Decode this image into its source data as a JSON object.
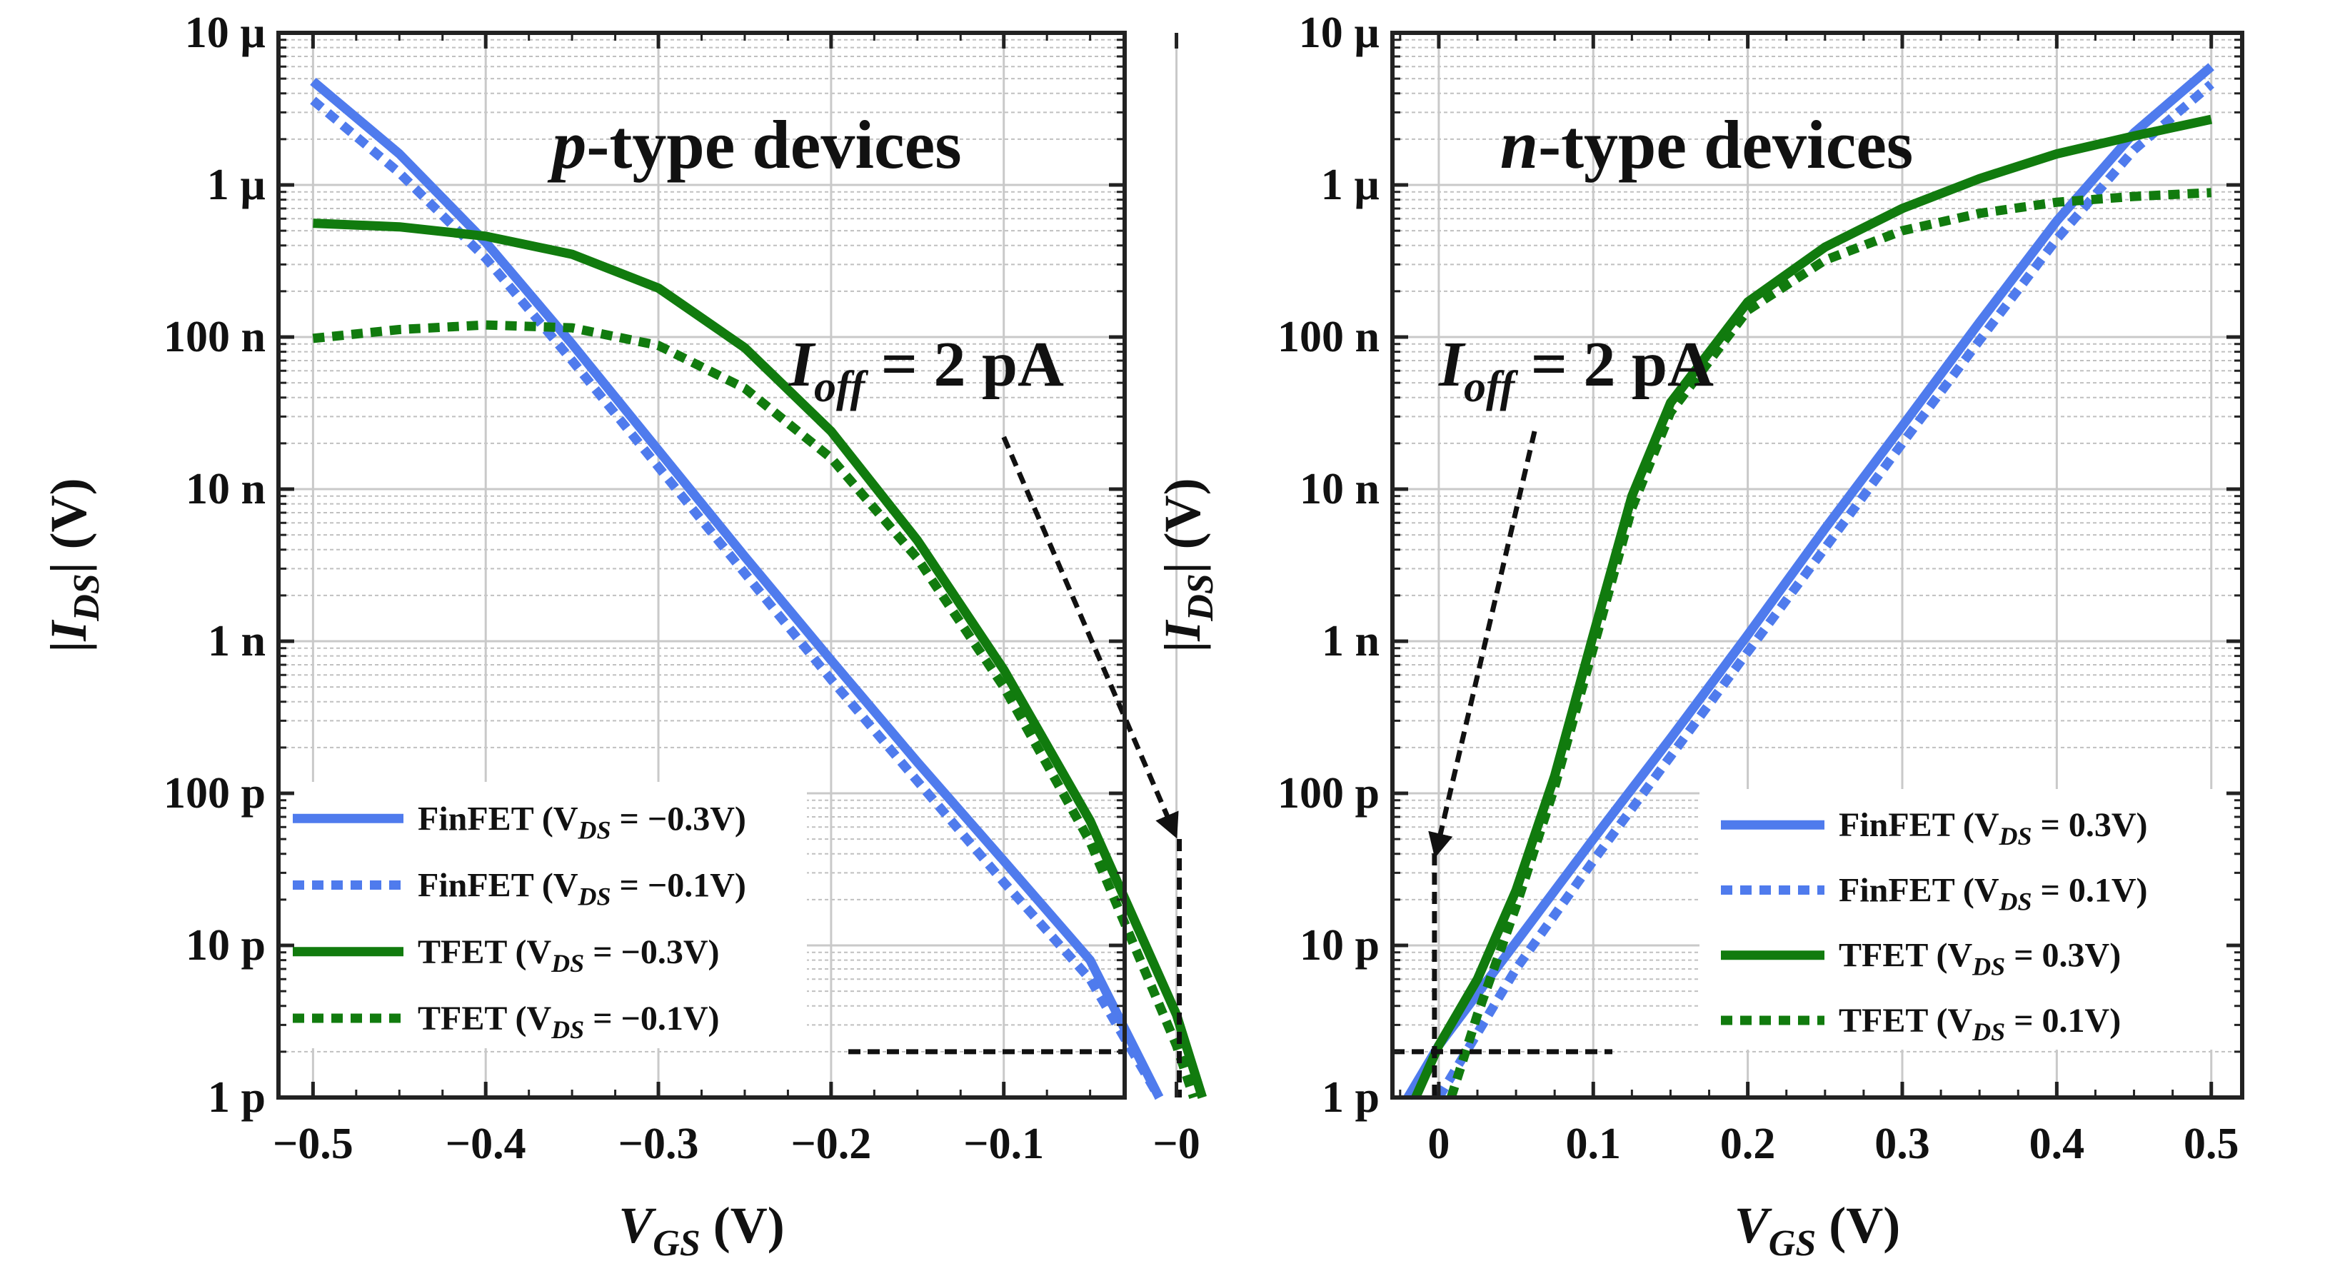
{
  "colors": {
    "finfet": "#4f7bed",
    "tfet": "#117b0e",
    "arrow": "#111111",
    "grid_major": "#c9c9c9",
    "grid_minor": "#c0c0c0",
    "frame": "#222222"
  },
  "chart_data": [
    {
      "type": "line",
      "id": "ptype",
      "title_italic": "p",
      "title_rest": "-type devices",
      "xlabel_main": "V",
      "xlabel_sub": "GS",
      "xlabel_unit": " (V)",
      "ylabel_pre": "|",
      "ylabel_main": "I",
      "ylabel_sub": "DS",
      "ylabel_post": "| (V)",
      "xlim": [
        -0.52,
        -0.03
      ],
      "ylim": [
        1e-12,
        1e-05
      ],
      "yscale": "log",
      "x_ticks": [
        -0.5,
        -0.4,
        -0.3,
        -0.2,
        -0.1,
        0
      ],
      "x_tick_labels": [
        "−0.5",
        "−0.4",
        "−0.3",
        "−0.2",
        "−0.1",
        "−0"
      ],
      "y_ticks": [
        1e-05,
        1e-06,
        1e-07,
        1e-08,
        1e-09,
        1e-10,
        1e-11,
        1e-12
      ],
      "y_tick_labels": [
        "10 µ",
        "1 µ",
        "100 n",
        "10 n",
        "1 n",
        "100 p",
        "10 p",
        "1 p"
      ],
      "grid": true,
      "annotation": {
        "main": "I",
        "sub": "off",
        "rest": " = 2 pA"
      },
      "ioff_value": 2e-12,
      "ioff_vgs": 0,
      "arrow_from": {
        "x": -0.1,
        "y": 2.2e-08
      },
      "legend_position": "lower-left",
      "series": [
        {
          "name": "FinFET (V",
          "sub": "DS",
          "tail": " = −0.3V)",
          "color_key": "finfet",
          "style": "solid",
          "x": [
            -0.5,
            -0.45,
            -0.4,
            -0.35,
            -0.3,
            -0.25,
            -0.2,
            -0.15,
            -0.1,
            -0.05,
            -0.01
          ],
          "y": [
            4.8e-06,
            1.6e-06,
            4.2e-07,
            9e-08,
            1.8e-08,
            3.6e-09,
            7.5e-10,
            1.6e-10,
            3.6e-11,
            8e-12,
            1e-12
          ]
        },
        {
          "name": "FinFET (V",
          "sub": "DS",
          "tail": " = −0.1V)",
          "color_key": "finfet",
          "style": "dotted",
          "x": [
            -0.5,
            -0.45,
            -0.4,
            -0.35,
            -0.3,
            -0.25,
            -0.2,
            -0.15,
            -0.1,
            -0.05,
            -0.01
          ],
          "y": [
            3.6e-06,
            1.2e-06,
            3.3e-07,
            7e-08,
            1.4e-08,
            2.8e-09,
            5.6e-10,
            1.2e-10,
            2.6e-11,
            6e-12,
            1e-12
          ]
        },
        {
          "name": "TFET (V",
          "sub": "DS",
          "tail": " = −0.3V)",
          "color_key": "tfet",
          "style": "solid",
          "x": [
            -0.5,
            -0.45,
            -0.4,
            -0.35,
            -0.3,
            -0.25,
            -0.2,
            -0.15,
            -0.1,
            -0.05,
            0,
            0.015
          ],
          "y": [
            5.6e-07,
            5.3e-07,
            4.6e-07,
            3.5e-07,
            2.1e-07,
            8.5e-08,
            2.4e-08,
            4.6e-09,
            6.5e-10,
            6.6e-11,
            3.5e-12,
            1e-12
          ]
        },
        {
          "name": "TFET (V",
          "sub": "DS",
          "tail": " = −0.1V)",
          "color_key": "tfet",
          "style": "dotted",
          "x": [
            -0.5,
            -0.45,
            -0.4,
            -0.35,
            -0.3,
            -0.25,
            -0.2,
            -0.15,
            -0.1,
            -0.05,
            0,
            0.01
          ],
          "y": [
            9.8e-08,
            1.12e-07,
            1.2e-07,
            1.15e-07,
            8.8e-08,
            4.6e-08,
            1.6e-08,
            3.5e-09,
            5e-10,
            4.8e-11,
            2.2e-12,
            1e-12
          ]
        }
      ]
    },
    {
      "type": "line",
      "id": "ntype",
      "title_italic": "n",
      "title_rest": "-type devices",
      "xlabel_main": "V",
      "xlabel_sub": "GS",
      "xlabel_unit": " (V)",
      "ylabel_pre": "|",
      "ylabel_main": "I",
      "ylabel_sub": "DS",
      "ylabel_post": "| (V)",
      "xlim": [
        -0.03,
        0.52
      ],
      "ylim": [
        1e-12,
        1e-05
      ],
      "yscale": "log",
      "x_ticks": [
        0,
        0.1,
        0.2,
        0.3,
        0.4,
        0.5
      ],
      "x_tick_labels": [
        "0",
        "0.1",
        "0.2",
        "0.3",
        "0.4",
        "0.5"
      ],
      "y_ticks": [
        1e-05,
        1e-06,
        1e-07,
        1e-08,
        1e-09,
        1e-10,
        1e-11,
        1e-12
      ],
      "y_tick_labels": [
        "10 µ",
        "1 µ",
        "100 n",
        "10 n",
        "1 n",
        "100 p",
        "10 p",
        "1 p"
      ],
      "grid": true,
      "annotation": {
        "main": "I",
        "sub": "off",
        "rest": " = 2 pA"
      },
      "ioff_value": 2e-12,
      "ioff_vgs": 0,
      "arrow_from": {
        "x": 0.062,
        "y": 2.4e-08
      },
      "legend_position": "lower-right",
      "series": [
        {
          "name": "FinFET (V",
          "sub": "DS",
          "tail": " = 0.3V)",
          "color_key": "finfet",
          "style": "solid",
          "x": [
            -0.02,
            0,
            0.05,
            0.1,
            0.15,
            0.2,
            0.25,
            0.3,
            0.35,
            0.4,
            0.45,
            0.5
          ],
          "y": [
            1e-12,
            2.2e-12,
            1.05e-11,
            5e-11,
            2.3e-10,
            1.1e-09,
            5.5e-09,
            2.6e-08,
            1.25e-07,
            5.8e-07,
            2.2e-06,
            6e-06
          ]
        },
        {
          "name": "FinFET (V",
          "sub": "DS",
          "tail": " = 0.1V)",
          "color_key": "finfet",
          "style": "dotted",
          "x": [
            0,
            0.05,
            0.1,
            0.15,
            0.2,
            0.25,
            0.3,
            0.35,
            0.4,
            0.45,
            0.5
          ],
          "y": [
            1e-12,
            7e-12,
            3.6e-11,
            1.75e-10,
            8.5e-10,
            4.1e-09,
            2e-08,
            9.5e-08,
            4.4e-07,
            1.7e-06,
            4.6e-06
          ]
        },
        {
          "name": "TFET (V",
          "sub": "DS",
          "tail": " = 0.3V)",
          "color_key": "tfet",
          "style": "solid",
          "x": [
            -0.015,
            0,
            0.025,
            0.05,
            0.075,
            0.1,
            0.125,
            0.15,
            0.2,
            0.25,
            0.3,
            0.35,
            0.4,
            0.45,
            0.5
          ],
          "y": [
            1e-12,
            2.2e-12,
            6e-12,
            2.3e-11,
            1.3e-10,
            1.1e-09,
            9e-09,
            3.7e-08,
            1.7e-07,
            3.9e-07,
            7e-07,
            1.1e-06,
            1.6e-06,
            2.1e-06,
            2.7e-06
          ]
        },
        {
          "name": "TFET (V",
          "sub": "DS",
          "tail": " = 0.1V)",
          "color_key": "tfet",
          "style": "dotted",
          "x": [
            0.008,
            0.025,
            0.05,
            0.075,
            0.1,
            0.125,
            0.15,
            0.2,
            0.25,
            0.3,
            0.35,
            0.4,
            0.45,
            0.5
          ],
          "y": [
            1e-12,
            3.5e-12,
            1.8e-11,
            1.1e-10,
            9e-10,
            7.5e-09,
            3.2e-08,
            1.5e-07,
            3.2e-07,
            5e-07,
            6.5e-07,
            7.7e-07,
            8.4e-07,
            8.9e-07
          ]
        }
      ]
    }
  ]
}
